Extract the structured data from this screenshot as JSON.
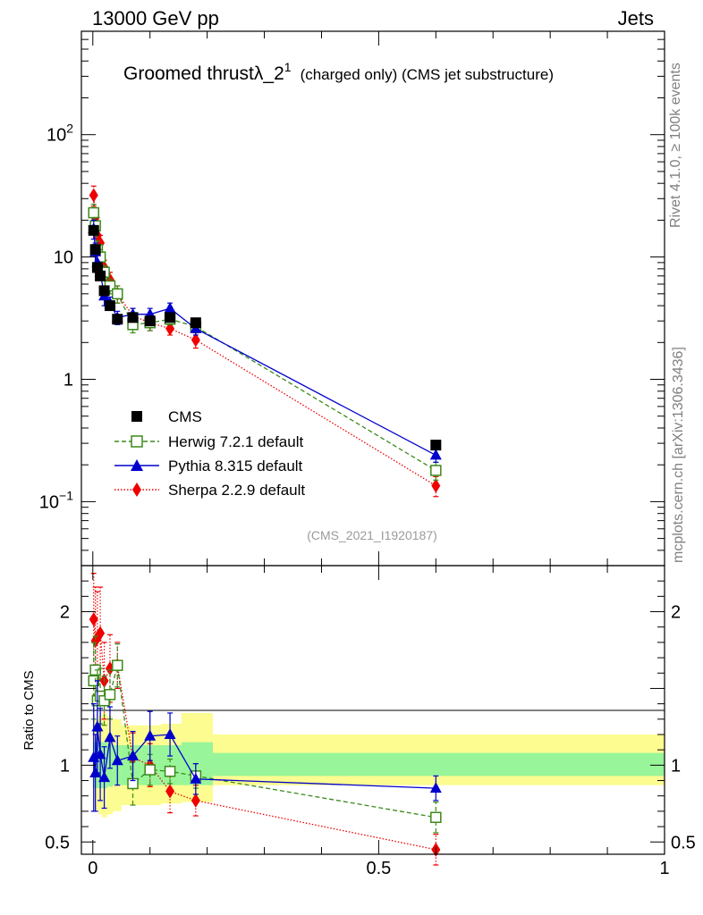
{
  "header": {
    "left": "13000 GeV pp",
    "right": "Jets"
  },
  "title": {
    "main": "Groomed thrust",
    "lambda": "λ_2",
    "sup": "1",
    "suffix": "(charged only) (CMS jet substructure)"
  },
  "side": {
    "rivet": "Rivet 4.1.0, ≥ 100k events",
    "mcplots": "mcplots.cern.ch [arXiv:1306.3436]"
  },
  "analysis_tag": "(CMS_2021_I1920187)",
  "colors": {
    "cms": "#000000",
    "herwig": "#3a8a1a",
    "pythia": "#0000cc",
    "sherpa": "#ee0000",
    "band_inner": "#99f599",
    "band_outer": "#fcfc90"
  },
  "chart_data": [
    {
      "type": "scatter",
      "panel": "main",
      "yscale": "log",
      "xlim": [
        -0.02,
        1.0
      ],
      "ylim": [
        0.03,
        700
      ],
      "yticks": [
        {
          "value": 0.1,
          "base": "10",
          "exp": "−1"
        },
        {
          "value": 1,
          "base": "1",
          "exp": ""
        },
        {
          "value": 10,
          "base": "10",
          "exp": ""
        },
        {
          "value": 100,
          "base": "10",
          "exp": "2"
        }
      ],
      "legend": [
        "CMS",
        "Herwig 7.2.1 default",
        "Pythia 8.315 default",
        "Sherpa 2.2.9 default"
      ],
      "series": [
        {
          "name": "CMS",
          "style": "square-filled",
          "x": [
            0.0015,
            0.0045,
            0.008,
            0.013,
            0.02,
            0.03,
            0.043,
            0.07,
            0.1,
            0.135,
            0.18,
            0.6
          ],
          "y": [
            16.5,
            11.5,
            8.2,
            7.0,
            5.3,
            4.0,
            3.1,
            3.2,
            3.0,
            3.2,
            2.9,
            0.29
          ]
        },
        {
          "name": "Herwig 7.2.1 default",
          "style": "square-open-dashed",
          "x": [
            0.0015,
            0.0045,
            0.008,
            0.013,
            0.02,
            0.03,
            0.043,
            0.07,
            0.1,
            0.135,
            0.18,
            0.6
          ],
          "y": [
            23,
            18,
            11.5,
            10,
            7.5,
            5.8,
            5.0,
            2.8,
            2.9,
            3.1,
            2.7,
            0.18
          ],
          "err": [
            4,
            3,
            2,
            1.5,
            1,
            0.8,
            0.8,
            0.4,
            0.4,
            0.3,
            0.3,
            0.03
          ]
        },
        {
          "name": "Pythia 8.315 default",
          "style": "triangle-solid",
          "x": [
            0.0015,
            0.0045,
            0.008,
            0.013,
            0.02,
            0.03,
            0.043,
            0.07,
            0.1,
            0.135,
            0.18,
            0.6
          ],
          "y": [
            17,
            11,
            9.0,
            7.5,
            4.8,
            4.2,
            3.2,
            3.4,
            3.4,
            3.8,
            2.6,
            0.24
          ],
          "err": [
            3,
            2,
            1.5,
            1,
            0.8,
            0.5,
            0.4,
            0.4,
            0.4,
            0.4,
            0.3,
            0.03
          ]
        },
        {
          "name": "Sherpa 2.2.9 default",
          "style": "diamond-dotted",
          "x": [
            0.0015,
            0.0045,
            0.008,
            0.013,
            0.02,
            0.03,
            0.043,
            0.07,
            0.1,
            0.135,
            0.18,
            0.6
          ],
          "y": [
            32,
            21,
            15,
            13,
            8.2,
            6.5,
            5.0,
            3.3,
            2.9,
            2.6,
            2.1,
            0.135
          ],
          "err": [
            6,
            4,
            3,
            2,
            1.2,
            1.0,
            0.8,
            0.5,
            0.4,
            0.3,
            0.3,
            0.025
          ]
        }
      ]
    },
    {
      "type": "scatter",
      "panel": "ratio",
      "ylabel": "Ratio to CMS",
      "xlim": [
        -0.02,
        1.0
      ],
      "ylim": [
        0.42,
        2.3
      ],
      "xticks": [
        {
          "value": 0,
          "label": "0"
        },
        {
          "value": 0.5,
          "label": "0.5"
        },
        {
          "value": 1,
          "label": "1"
        }
      ],
      "yticks": [
        {
          "value": 0.5,
          "label": "0.5"
        },
        {
          "value": 1,
          "label": "1"
        },
        {
          "value": 2,
          "label": "2"
        }
      ],
      "bins": [
        {
          "lo": 0.0,
          "hi": 0.003,
          "inner": [
            0.85,
            1.15
          ],
          "outer": [
            0.7,
            1.3
          ]
        },
        {
          "lo": 0.003,
          "hi": 0.006,
          "inner": [
            0.85,
            1.15
          ],
          "outer": [
            0.7,
            1.3
          ]
        },
        {
          "lo": 0.006,
          "hi": 0.01,
          "inner": [
            0.85,
            1.15
          ],
          "outer": [
            0.7,
            1.3
          ]
        },
        {
          "lo": 0.01,
          "hi": 0.016,
          "inner": [
            0.85,
            1.15
          ],
          "outer": [
            0.68,
            1.32
          ]
        },
        {
          "lo": 0.016,
          "hi": 0.025,
          "inner": [
            0.85,
            1.15
          ],
          "outer": [
            0.66,
            1.34
          ]
        },
        {
          "lo": 0.025,
          "hi": 0.035,
          "inner": [
            0.86,
            1.14
          ],
          "outer": [
            0.68,
            1.32
          ]
        },
        {
          "lo": 0.035,
          "hi": 0.05,
          "inner": [
            0.87,
            1.13
          ],
          "outer": [
            0.7,
            1.3
          ]
        },
        {
          "lo": 0.05,
          "hi": 0.085,
          "inner": [
            0.87,
            1.13
          ],
          "outer": [
            0.74,
            1.26
          ]
        },
        {
          "lo": 0.085,
          "hi": 0.12,
          "inner": [
            0.87,
            1.13
          ],
          "outer": [
            0.74,
            1.26
          ]
        },
        {
          "lo": 0.12,
          "hi": 0.155,
          "inner": [
            0.87,
            1.13
          ],
          "outer": [
            0.75,
            1.27
          ]
        },
        {
          "lo": 0.155,
          "hi": 0.21,
          "inner": [
            0.87,
            1.15
          ],
          "outer": [
            0.76,
            1.34
          ]
        },
        {
          "lo": 0.21,
          "hi": 1.0,
          "inner": [
            0.93,
            1.08
          ],
          "outer": [
            0.87,
            1.2
          ]
        }
      ],
      "series": [
        {
          "name": "Herwig 7.2.1 default",
          "x": [
            0.0015,
            0.0045,
            0.008,
            0.013,
            0.02,
            0.03,
            0.043,
            0.07,
            0.1,
            0.135,
            0.18,
            0.6
          ],
          "y": [
            1.55,
            1.62,
            1.42,
            1.45,
            1.42,
            1.46,
            1.65,
            0.88,
            0.97,
            0.96,
            0.93,
            0.66
          ],
          "err": [
            0.25,
            0.22,
            0.2,
            0.18,
            0.16,
            0.16,
            0.14,
            0.14,
            0.1,
            0.08,
            0.08,
            0.1
          ]
        },
        {
          "name": "Pythia 8.315 default",
          "x": [
            0.0015,
            0.0045,
            0.008,
            0.013,
            0.02,
            0.03,
            0.043,
            0.07,
            0.1,
            0.135,
            0.18,
            0.6
          ],
          "y": [
            1.05,
            0.95,
            1.25,
            1.07,
            0.92,
            1.18,
            1.03,
            1.06,
            1.19,
            1.2,
            0.91,
            0.85
          ],
          "err": [
            0.35,
            0.25,
            0.3,
            0.3,
            0.2,
            0.2,
            0.16,
            0.16,
            0.16,
            0.14,
            0.1,
            0.08
          ]
        },
        {
          "name": "Sherpa 2.2.9 default",
          "x": [
            0.0015,
            0.0045,
            0.008,
            0.013,
            0.02,
            0.03,
            0.043,
            0.07,
            0.1,
            0.135,
            0.18,
            0.6
          ],
          "y": [
            1.95,
            1.81,
            1.83,
            1.86,
            1.55,
            1.63,
            1.65,
            1.05,
            1.0,
            0.83,
            0.77,
            0.45
          ],
          "err": [
            0.3,
            0.35,
            0.3,
            0.3,
            0.25,
            0.22,
            0.15,
            0.16,
            0.14,
            0.14,
            0.1,
            0.1
          ]
        }
      ]
    }
  ]
}
